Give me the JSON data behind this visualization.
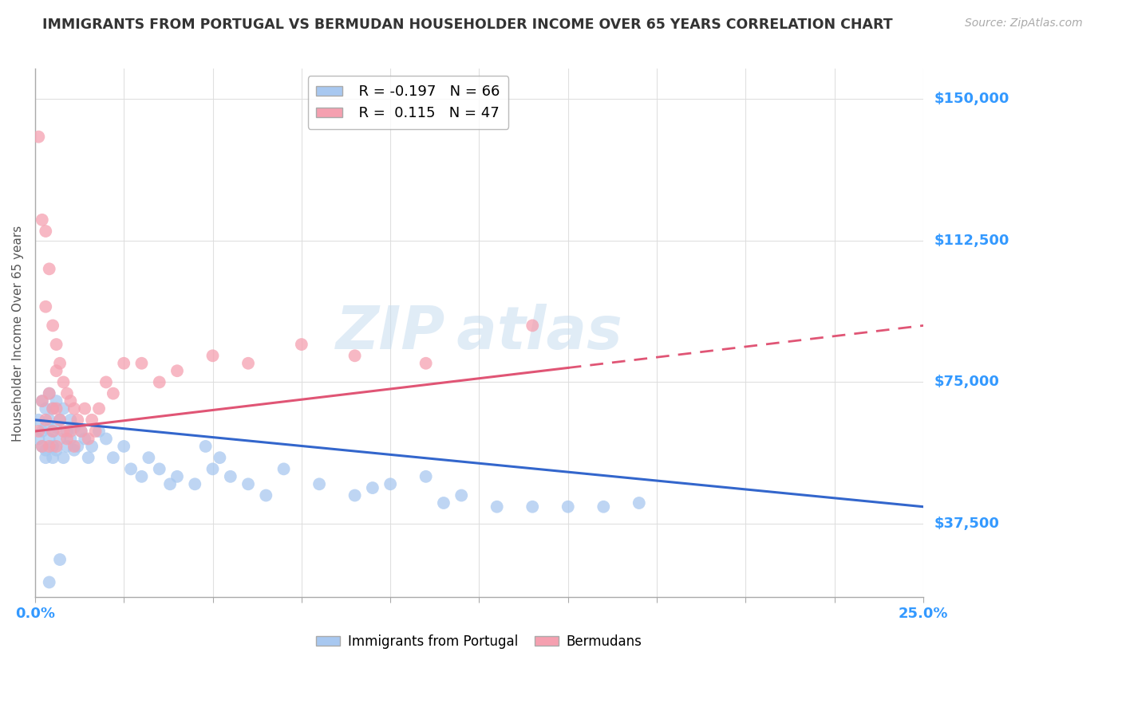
{
  "title": "IMMIGRANTS FROM PORTUGAL VS BERMUDAN HOUSEHOLDER INCOME OVER 65 YEARS CORRELATION CHART",
  "source": "Source: ZipAtlas.com",
  "ylabel": "Householder Income Over 65 years",
  "xlim": [
    0.0,
    0.25
  ],
  "ylim": [
    18000,
    158000
  ],
  "yticks": [
    37500,
    75000,
    112500,
    150000
  ],
  "ytick_labels": [
    "$37,500",
    "$75,000",
    "$112,500",
    "$150,000"
  ],
  "R_blue": -0.197,
  "N_blue": 66,
  "R_pink": 0.115,
  "N_pink": 47,
  "blue_color": "#a8c8f0",
  "pink_color": "#f5a0b0",
  "blue_line_color": "#3366cc",
  "pink_line_color": "#e05575",
  "axis_label_color": "#3399ff",
  "title_color": "#333333",
  "grid_color": "#dddddd",
  "blue_scatter_x": [
    0.001,
    0.001,
    0.002,
    0.002,
    0.002,
    0.003,
    0.003,
    0.003,
    0.003,
    0.004,
    0.004,
    0.004,
    0.005,
    0.005,
    0.005,
    0.005,
    0.006,
    0.006,
    0.006,
    0.007,
    0.007,
    0.008,
    0.008,
    0.009,
    0.009,
    0.01,
    0.01,
    0.011,
    0.011,
    0.012,
    0.013,
    0.014,
    0.015,
    0.016,
    0.018,
    0.02,
    0.022,
    0.025,
    0.027,
    0.03,
    0.032,
    0.035,
    0.038,
    0.04,
    0.045,
    0.05,
    0.055,
    0.06,
    0.065,
    0.07,
    0.08,
    0.09,
    0.1,
    0.11,
    0.12,
    0.13,
    0.14,
    0.15,
    0.16,
    0.17,
    0.048,
    0.052,
    0.095,
    0.115,
    0.007,
    0.004
  ],
  "blue_scatter_y": [
    65000,
    60000,
    62000,
    58000,
    70000,
    55000,
    63000,
    68000,
    57000,
    65000,
    60000,
    72000,
    55000,
    62000,
    58000,
    68000,
    63000,
    57000,
    70000,
    65000,
    60000,
    55000,
    68000,
    62000,
    58000,
    65000,
    60000,
    57000,
    63000,
    58000,
    62000,
    60000,
    55000,
    58000,
    62000,
    60000,
    55000,
    58000,
    52000,
    50000,
    55000,
    52000,
    48000,
    50000,
    48000,
    52000,
    50000,
    48000,
    45000,
    52000,
    48000,
    45000,
    48000,
    50000,
    45000,
    42000,
    42000,
    42000,
    42000,
    43000,
    58000,
    55000,
    47000,
    43000,
    28000,
    22000
  ],
  "pink_scatter_x": [
    0.001,
    0.001,
    0.002,
    0.002,
    0.002,
    0.003,
    0.003,
    0.003,
    0.004,
    0.004,
    0.004,
    0.005,
    0.005,
    0.005,
    0.006,
    0.006,
    0.006,
    0.006,
    0.007,
    0.007,
    0.008,
    0.008,
    0.009,
    0.009,
    0.01,
    0.01,
    0.011,
    0.011,
    0.012,
    0.013,
    0.014,
    0.015,
    0.016,
    0.017,
    0.018,
    0.02,
    0.022,
    0.025,
    0.03,
    0.035,
    0.04,
    0.05,
    0.06,
    0.075,
    0.09,
    0.11,
    0.14
  ],
  "pink_scatter_y": [
    140000,
    62000,
    118000,
    70000,
    58000,
    115000,
    95000,
    65000,
    105000,
    72000,
    58000,
    90000,
    68000,
    62000,
    85000,
    78000,
    68000,
    58000,
    80000,
    65000,
    75000,
    62000,
    72000,
    60000,
    70000,
    62000,
    68000,
    58000,
    65000,
    62000,
    68000,
    60000,
    65000,
    62000,
    68000,
    75000,
    72000,
    80000,
    80000,
    75000,
    78000,
    82000,
    80000,
    85000,
    82000,
    80000,
    90000
  ]
}
